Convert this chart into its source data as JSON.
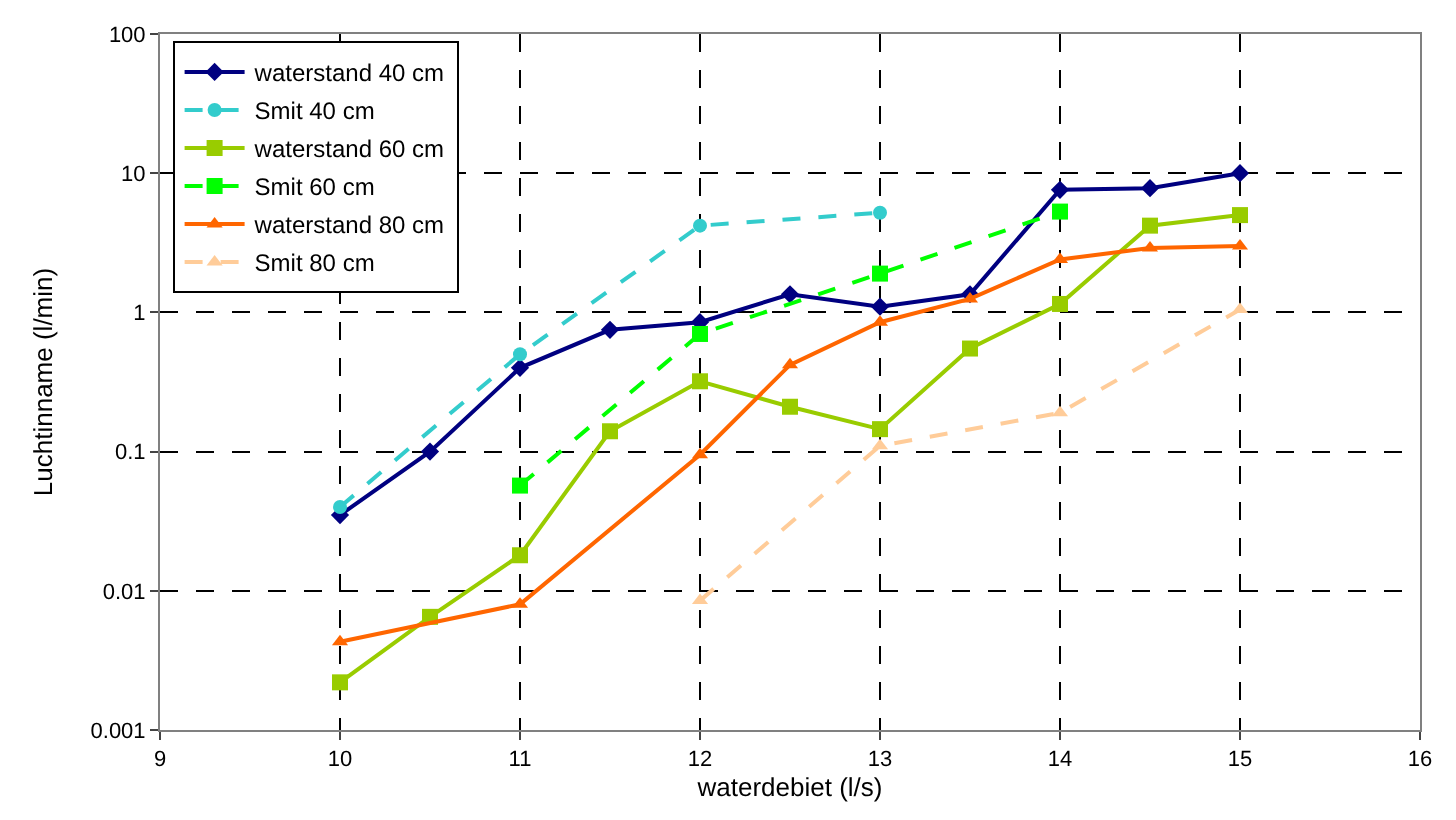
{
  "chart_data": {
    "type": "line",
    "xlabel": "waterdebiet (l/s)",
    "ylabel": "Luchtinname (l/min)",
    "log": "y",
    "grid": true,
    "legend": "top left",
    "xlim": [
      9,
      16
    ],
    "xticks": [
      9,
      10,
      11,
      12,
      13,
      14,
      15,
      16
    ],
    "ylim": [
      0.001,
      100
    ],
    "yticks": [
      0.001,
      0.01,
      0.1,
      1,
      10,
      100
    ],
    "series": [
      {
        "name": "waterstand 40 cm",
        "color": "#000080",
        "marker": "diamond",
        "line_style": "solid",
        "x": [
          10,
          10.5,
          11,
          11.5,
          12,
          12.5,
          13,
          13.5,
          14,
          14.5,
          15
        ],
        "values": [
          0.035,
          0.1,
          0.4,
          0.75,
          0.85,
          1.35,
          1.1,
          1.35,
          7.6,
          7.8,
          10
        ]
      },
      {
        "name": "Smit 40 cm",
        "color": "#33cccc",
        "marker": "circle",
        "line_style": "dashed",
        "x": [
          10,
          11,
          12,
          13
        ],
        "values": [
          0.04,
          0.5,
          4.2,
          5.2
        ]
      },
      {
        "name": "waterstand 60 cm",
        "color": "#99cc00",
        "marker": "square",
        "line_style": "solid",
        "x": [
          10,
          10.5,
          11,
          11.5,
          12,
          12.5,
          13,
          13.5,
          14,
          14.5,
          15
        ],
        "values": [
          0.0022,
          0.0065,
          0.018,
          0.14,
          0.32,
          0.21,
          0.145,
          0.55,
          1.15,
          4.2,
          5
        ]
      },
      {
        "name": "Smit 60 cm",
        "color": "#00ff00",
        "marker": "square",
        "line_style": "dashed",
        "x": [
          11,
          12,
          13,
          14
        ],
        "values": [
          0.057,
          0.7,
          1.9,
          5.3
        ]
      },
      {
        "name": "waterstand 80 cm",
        "color": "#ff6600",
        "marker": "triangle",
        "line_style": "solid",
        "x": [
          10,
          11,
          12,
          12.5,
          13,
          13.5,
          14,
          14.5,
          15
        ],
        "values": [
          0.0043,
          0.008,
          0.095,
          0.42,
          0.85,
          1.25,
          2.4,
          2.9,
          3.0
        ]
      },
      {
        "name": "Smit 80 cm",
        "color": "#ffcc99",
        "marker": "triangle",
        "line_style": "dashed",
        "x": [
          12,
          13,
          14,
          15
        ],
        "values": [
          0.0085,
          0.11,
          0.19,
          1.05
        ]
      }
    ]
  }
}
